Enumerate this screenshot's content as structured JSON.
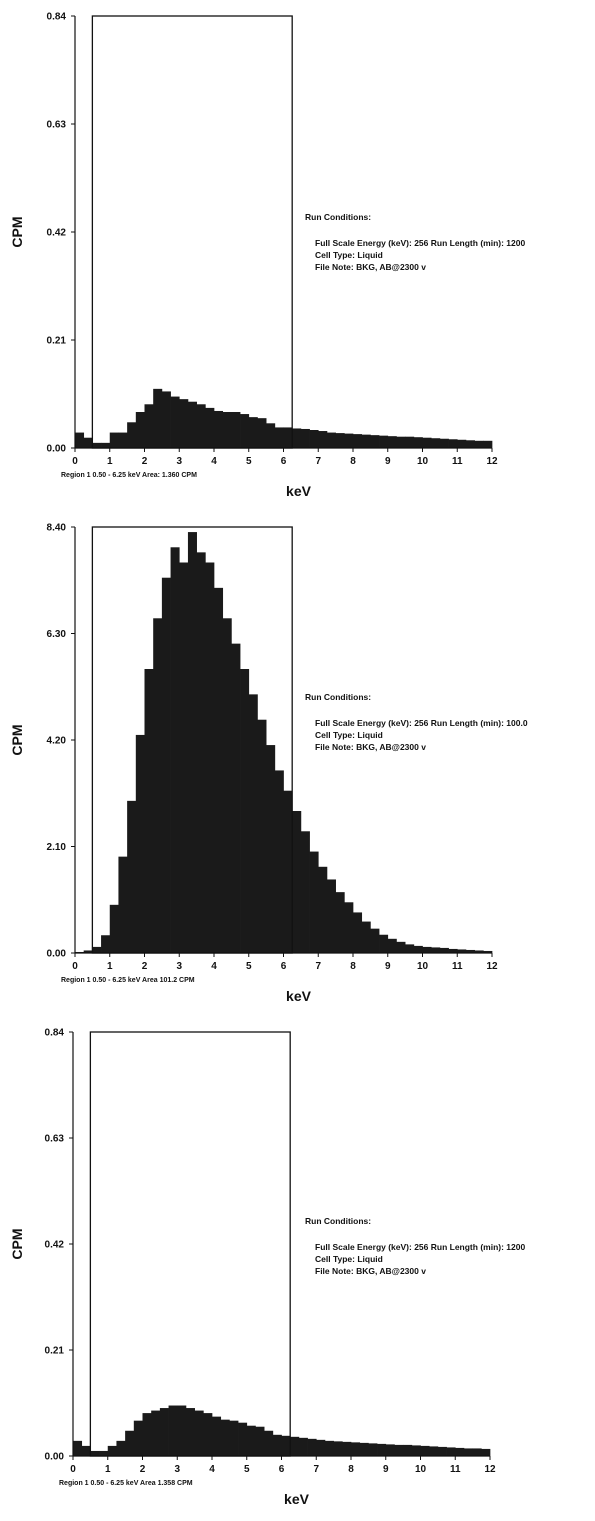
{
  "chart_data": [
    {
      "type": "bar",
      "title": "",
      "xlabel": "keV",
      "ylabel": "CPM",
      "xlim": [
        0,
        12
      ],
      "ylim": [
        0,
        0.84
      ],
      "x_ticks": [
        "0",
        "1",
        "2",
        "3",
        "4",
        "5",
        "6",
        "7",
        "8",
        "9",
        "10",
        "11",
        "12"
      ],
      "y_ticks": [
        "0.00",
        "0.21",
        "0.42",
        "0.63",
        "0.84"
      ],
      "bin_width_kev": 0.25,
      "region": {
        "start": 0.5,
        "end": 6.25,
        "label": "Region 1  0.50 - 6.25 keV  Area: 1.360 CPM"
      },
      "run_conditions": {
        "heading": "Run Conditions:",
        "line1": "Full Scale Energy (keV): 256  Run Length (min): 1200",
        "line2": "Cell Type: Liquid",
        "line3": "File Note: BKG, AB@2300 v"
      },
      "series": [
        {
          "values": [
            0.03,
            0.02,
            0.01,
            0.01,
            0.03,
            0.03,
            0.05,
            0.07,
            0.085,
            0.115,
            0.11,
            0.1,
            0.095,
            0.09,
            0.085,
            0.078,
            0.072,
            0.07,
            0.07,
            0.066,
            0.06,
            0.058,
            0.048,
            0.04,
            0.04,
            0.038,
            0.037,
            0.035,
            0.033,
            0.03,
            0.029,
            0.028,
            0.027,
            0.026,
            0.025,
            0.024,
            0.023,
            0.022,
            0.022,
            0.021,
            0.02,
            0.019,
            0.018,
            0.017,
            0.016,
            0.015,
            0.014,
            0.014
          ]
        }
      ]
    },
    {
      "type": "bar",
      "title": "",
      "xlabel": "keV",
      "ylabel": "CPM",
      "xlim": [
        0,
        12
      ],
      "ylim": [
        0,
        8.4
      ],
      "x_ticks": [
        "0",
        "1",
        "2",
        "3",
        "4",
        "5",
        "6",
        "7",
        "8",
        "9",
        "10",
        "11",
        "12"
      ],
      "y_ticks": [
        "0.00",
        "2.10",
        "4.20",
        "6.30",
        "8.40"
      ],
      "bin_width_kev": 0.25,
      "region": {
        "start": 0.5,
        "end": 6.25,
        "label": "Region 1  0.50 - 6.25 keV  Area 101.2 CPM"
      },
      "run_conditions": {
        "heading": "Run Conditions:",
        "line1": "Full Scale Energy (keV): 256  Run Length (min): 100.0",
        "line2": "Cell Type: Liquid",
        "line3": "File Note: BKG, AB@2300 v"
      },
      "series": [
        {
          "values": [
            0.02,
            0.05,
            0.12,
            0.35,
            0.95,
            1.9,
            3.0,
            4.3,
            5.6,
            6.6,
            7.4,
            8.0,
            7.7,
            8.3,
            7.9,
            7.7,
            7.2,
            6.6,
            6.1,
            5.6,
            5.1,
            4.6,
            4.1,
            3.6,
            3.2,
            2.8,
            2.4,
            2.0,
            1.7,
            1.45,
            1.2,
            1.0,
            0.8,
            0.62,
            0.48,
            0.36,
            0.28,
            0.22,
            0.17,
            0.14,
            0.12,
            0.11,
            0.1,
            0.08,
            0.07,
            0.06,
            0.05,
            0.04
          ]
        }
      ]
    },
    {
      "type": "bar",
      "title": "",
      "xlabel": "keV",
      "ylabel": "CPM",
      "xlim": [
        0,
        12
      ],
      "ylim": [
        0,
        0.84
      ],
      "x_ticks": [
        "0",
        "1",
        "2",
        "3",
        "4",
        "5",
        "6",
        "7",
        "8",
        "9",
        "10",
        "11",
        "12"
      ],
      "y_ticks": [
        "0.00",
        "0.21",
        "0.42",
        "0.63",
        "0.84"
      ],
      "bin_width_kev": 0.25,
      "region": {
        "start": 0.5,
        "end": 6.25,
        "label": "Region 1  0.50 - 6.25 keV  Area 1.358 CPM"
      },
      "run_conditions": {
        "heading": "Run Conditions:",
        "line1": "Full Scale Energy (keV): 256  Run Length (min): 1200",
        "line2": "Cell Type: Liquid",
        "line3": "File Note: BKG, AB@2300 v"
      },
      "series": [
        {
          "values": [
            0.03,
            0.02,
            0.01,
            0.01,
            0.02,
            0.03,
            0.05,
            0.07,
            0.085,
            0.09,
            0.095,
            0.1,
            0.1,
            0.095,
            0.09,
            0.085,
            0.078,
            0.072,
            0.07,
            0.066,
            0.06,
            0.058,
            0.05,
            0.042,
            0.04,
            0.038,
            0.036,
            0.034,
            0.032,
            0.03,
            0.029,
            0.028,
            0.027,
            0.026,
            0.025,
            0.024,
            0.023,
            0.022,
            0.022,
            0.021,
            0.02,
            0.019,
            0.018,
            0.017,
            0.016,
            0.015,
            0.015,
            0.014
          ]
        }
      ]
    }
  ]
}
